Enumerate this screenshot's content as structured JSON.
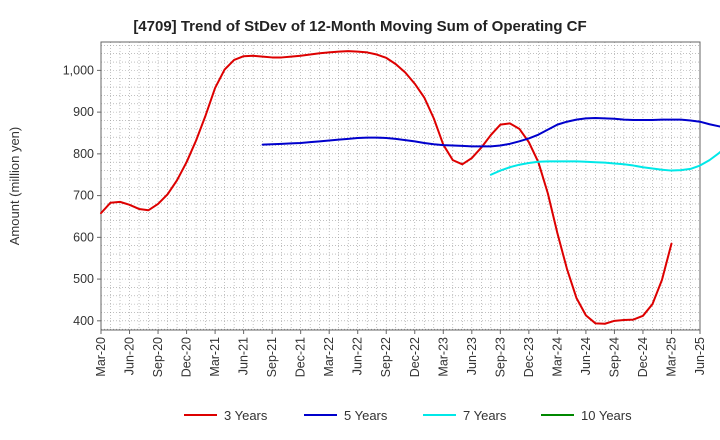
{
  "chart_data": {
    "type": "line",
    "title": "[4709]  Trend of StDev of 12-Month Moving Sum of Operating CF",
    "ylabel": "Amount (million yen)",
    "xlabel": "",
    "x_ticks": [
      "Mar-20",
      "Jun-20",
      "Sep-20",
      "Dec-20",
      "Mar-21",
      "Jun-21",
      "Sep-21",
      "Dec-21",
      "Mar-22",
      "Jun-22",
      "Sep-22",
      "Dec-22",
      "Mar-23",
      "Jun-23",
      "Sep-23",
      "Dec-23",
      "Mar-24",
      "Jun-24",
      "Sep-24",
      "Dec-24",
      "Mar-25",
      "Jun-25"
    ],
    "y_ticks": [
      400,
      500,
      600,
      700,
      800,
      900,
      1000
    ],
    "y_tick_labels": [
      "400",
      "500",
      "600",
      "700",
      "800",
      "900",
      "1,000"
    ],
    "ylim": [
      378,
      1068
    ],
    "xlim": [
      "Mar-20",
      "Jun-25"
    ],
    "grid": true,
    "legend_position": "bottom",
    "series": [
      {
        "name": "3 Years",
        "color": "#dd0000",
        "start": "Mar-20",
        "values": [
          658,
          683,
          685,
          678,
          668,
          665,
          680,
          703,
          737,
          780,
          832,
          892,
          958,
          1002,
          1025,
          1034,
          1035,
          1033,
          1031,
          1031,
          1033,
          1035,
          1038,
          1041,
          1043,
          1045,
          1046,
          1045,
          1043,
          1038,
          1030,
          1015,
          995,
          968,
          935,
          885,
          822,
          785,
          775,
          790,
          815,
          845,
          870,
          873,
          860,
          828,
          780,
          705,
          610,
          525,
          455,
          413,
          394,
          393,
          400,
          402,
          403,
          412,
          440,
          498,
          585
        ]
      },
      {
        "name": "5 Years",
        "color": "#0000cc",
        "start": "Aug-21",
        "values": [
          822,
          823,
          824,
          825,
          826,
          828,
          830,
          832,
          834,
          836,
          838,
          839,
          839,
          838,
          836,
          833,
          830,
          826,
          823,
          821,
          820,
          819,
          818,
          818,
          818,
          820,
          824,
          830,
          837,
          846,
          858,
          870,
          877,
          882,
          885,
          886,
          885,
          884,
          882,
          881,
          881,
          881,
          882,
          882,
          882,
          880,
          877,
          871,
          866,
          861,
          859,
          860,
          865,
          875
        ]
      },
      {
        "name": "7 Years",
        "color": "#00e8e8",
        "start": "Aug-23",
        "values": [
          750,
          760,
          768,
          774,
          778,
          781,
          782,
          782,
          782,
          782,
          781,
          780,
          779,
          777,
          775,
          772,
          768,
          765,
          762,
          760,
          761,
          764,
          772,
          785,
          802,
          822
        ]
      },
      {
        "name": "10 Years",
        "color": "#008800",
        "start": "Mar-25",
        "values": []
      }
    ]
  }
}
